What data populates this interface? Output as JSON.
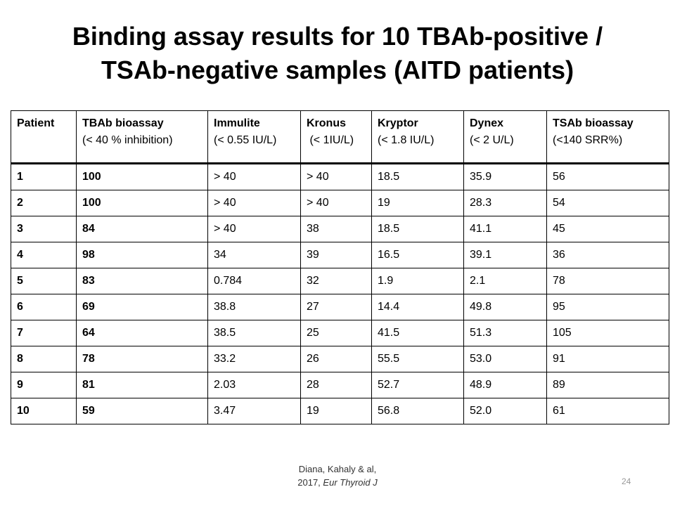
{
  "title": {
    "line1": "Binding assay results for 10 TBAb-positive /",
    "line2": "TSAb-negative samples (AITD patients)"
  },
  "table": {
    "columns": [
      {
        "name": "Patient",
        "ref": ""
      },
      {
        "name": "TBAb bioassay",
        "ref": "(< 40 % inhibition)"
      },
      {
        "name": "Immulite",
        "ref": "(< 0.55 IU/L)"
      },
      {
        "name": "Kronus",
        "ref": " (< 1IU/L)"
      },
      {
        "name": "Kryptor",
        "ref": "(< 1.8 IU/L)"
      },
      {
        "name": "Dynex",
        "ref": "(< 2 U/L)"
      },
      {
        "name": "TSAb bioassay",
        "ref": "(<140 SRR%)"
      }
    ],
    "rows": [
      [
        "1",
        "100",
        "> 40",
        "> 40",
        "18.5",
        "35.9",
        "56"
      ],
      [
        "2",
        "100",
        "> 40",
        "> 40",
        "19",
        "28.3",
        "54"
      ],
      [
        "3",
        "84",
        "> 40",
        "38",
        "18.5",
        "41.1",
        "45"
      ],
      [
        "4",
        "98",
        "34",
        "39",
        "16.5",
        "39.1",
        "36"
      ],
      [
        "5",
        "83",
        "0.784",
        "32",
        "1.9",
        "2.1",
        "78"
      ],
      [
        "6",
        "69",
        "38.8",
        "27",
        "14.4",
        "49.8",
        "95"
      ],
      [
        "7",
        "64",
        "38.5",
        "25",
        "41.5",
        "51.3",
        "105"
      ],
      [
        "8",
        "78",
        "33.2",
        "26",
        "55.5",
        "53.0",
        "91"
      ],
      [
        "9",
        "81",
        "2.03",
        "28",
        "52.7",
        "48.9",
        "89"
      ],
      [
        "10",
        "59",
        "3.47",
        "19",
        "56.8",
        "52.0",
        "61"
      ]
    ]
  },
  "citation": {
    "line1": "Diana, Kahaly & al,",
    "year": "2017, ",
    "journal": "Eur Thyroid J"
  },
  "page_number": "24"
}
